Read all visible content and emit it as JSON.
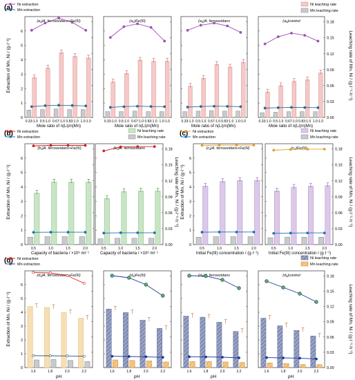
{
  "figure": {
    "panel_labels": [
      "(a)",
      "(b)",
      "(c)",
      "(d)"
    ],
    "left_axis_label": "Extraction of Mn, Ni / (g·l⁻¹)",
    "right_axis_label": "Leaching rate of Mn, Ni / (g·l⁻¹·h⁻¹)",
    "legend_line": [
      "Ni extraction",
      "Mn extraction"
    ],
    "legend_bar": [
      "Ni leaching rate",
      "Mn leaching rate"
    ],
    "xlabel_a": "Mole ratio of n(Li)/n(Mn)",
    "xlabel_b": "Capacity of bacteria / ×10⁸ ml⁻¹",
    "xlabel_c": "Initial Fe(III) concentration / (g·l⁻¹)",
    "xlabel_d": "pH"
  },
  "chart_data": [
    {
      "type": "bar",
      "panel": "(a1)",
      "title": "(a₁)A. ferrooxidans+Fe(III)",
      "categories": [
        "0.33:1.0",
        "0.5:1.0",
        "0.67:1.0",
        "0.83:1.0",
        "1.0:1.0"
      ],
      "ylim": [
        0,
        7
      ],
      "y2lim": [
        0,
        0.19
      ],
      "yticks": [
        0,
        1,
        2,
        3,
        4,
        5,
        6
      ],
      "y2ticks": [
        0.0,
        0.03,
        0.06,
        0.09,
        0.12,
        0.15,
        0.18
      ],
      "series": [
        {
          "name": "Ni leaching rate",
          "axis": "right",
          "kind": "bar",
          "values": [
            0.075,
            0.093,
            0.122,
            0.115,
            0.112
          ]
        },
        {
          "name": "Mn leaching rate",
          "axis": "right",
          "kind": "bar",
          "values": [
            0.014,
            0.015,
            0.016,
            0.015,
            0.015
          ]
        },
        {
          "name": "Ni extraction",
          "axis": "left",
          "kind": "line",
          "values": [
            6.05,
            6.55,
            6.9,
            6.6,
            6.05
          ]
        },
        {
          "name": "Mn extraction",
          "axis": "left",
          "kind": "line",
          "values": [
            0.75,
            0.82,
            0.85,
            0.83,
            0.8
          ]
        }
      ]
    },
    {
      "type": "bar",
      "panel": "(a2)",
      "title": "(a₂)Fe(III)",
      "categories": [
        "0.33:1.0",
        "0.5:1.0",
        "0.67:1.0",
        "0.83:1.0",
        "1.0:1.0"
      ],
      "ylim": [
        0,
        7
      ],
      "y2lim": [
        0,
        0.19
      ],
      "series": [
        {
          "name": "Ni leaching rate",
          "axis": "right",
          "kind": "bar",
          "values": [
            0.067,
            0.083,
            0.108,
            0.106,
            0.106
          ]
        },
        {
          "name": "Mn leaching rate",
          "axis": "right",
          "kind": "bar",
          "values": [
            0.011,
            0.011,
            0.012,
            0.011,
            0.011
          ]
        },
        {
          "name": "Ni extraction",
          "axis": "left",
          "kind": "line",
          "values": [
            5.55,
            6.3,
            6.5,
            6.25,
            5.3
          ]
        },
        {
          "name": "Mn extraction",
          "axis": "left",
          "kind": "line",
          "values": [
            0.7,
            0.75,
            0.78,
            0.76,
            0.75
          ]
        }
      ]
    },
    {
      "type": "bar",
      "panel": "(a3)",
      "title": "(a₃)A. ferrooxidans",
      "categories": [
        "0.33:1.0",
        "0.5:1.0",
        "0.67:1.0",
        "0.83:1.0",
        "1.0:1.0"
      ],
      "ylim": [
        0,
        7
      ],
      "y2lim": [
        0,
        0.19
      ],
      "series": [
        {
          "name": "Ni leaching rate",
          "axis": "right",
          "kind": "bar",
          "values": [
            0.059,
            0.074,
            0.1,
            0.095,
            0.104
          ]
        },
        {
          "name": "Mn leaching rate",
          "axis": "right",
          "kind": "bar",
          "values": [
            0.011,
            0.012,
            0.013,
            0.012,
            0.012
          ]
        },
        {
          "name": "Ni extraction",
          "axis": "left",
          "kind": "line",
          "values": [
            6.05,
            6.4,
            6.55,
            6.35,
            5.9
          ]
        },
        {
          "name": "Mn extraction",
          "axis": "left",
          "kind": "line",
          "values": [
            0.72,
            0.76,
            0.78,
            0.77,
            0.75
          ]
        }
      ]
    },
    {
      "type": "bar",
      "panel": "(a4)",
      "title": "(a₄)control",
      "categories": [
        "0.33:1.0",
        "0.5:1.0",
        "0.67:1.0",
        "0.83:1.0",
        "1.0:1.0"
      ],
      "ylim": [
        0,
        7
      ],
      "y2lim": [
        0,
        0.19
      ],
      "series": [
        {
          "name": "Ni leaching rate",
          "axis": "right",
          "kind": "bar",
          "values": [
            0.048,
            0.06,
            0.068,
            0.071,
            0.084
          ]
        },
        {
          "name": "Mn leaching rate",
          "axis": "right",
          "kind": "bar",
          "values": [
            0.009,
            0.01,
            0.011,
            0.011,
            0.011
          ]
        },
        {
          "name": "Ni extraction",
          "axis": "left",
          "kind": "line",
          "values": [
            5.1,
            5.6,
            5.85,
            5.7,
            5.3
          ]
        },
        {
          "name": "Mn extraction",
          "axis": "left",
          "kind": "line",
          "values": [
            0.65,
            0.68,
            0.7,
            0.69,
            0.68
          ]
        }
      ]
    },
    {
      "type": "bar",
      "panel": "(b1)",
      "title": "(b₁)A. ferrooxidans+Fe(III)",
      "categories": [
        "0.5",
        "1.0",
        "1.5",
        "2.0"
      ],
      "ylim": [
        0,
        7
      ],
      "y2lim": [
        0,
        0.19
      ],
      "yticks": [
        0,
        1,
        2,
        3,
        4,
        5,
        6
      ],
      "y2ticks": [
        0.0,
        0.03,
        0.06,
        0.09,
        0.12,
        0.15,
        0.18
      ],
      "series": [
        {
          "name": "Ni leaching rate",
          "axis": "right",
          "kind": "bar",
          "values": [
            0.097,
            0.118,
            0.118,
            0.118
          ]
        },
        {
          "name": "Mn leaching rate",
          "axis": "right",
          "kind": "bar",
          "values": [
            0.014,
            0.015,
            0.015,
            0.015
          ]
        },
        {
          "name": "Ni extraction",
          "axis": "left",
          "kind": "line",
          "values": [
            6.85,
            6.88,
            6.88,
            6.88
          ]
        },
        {
          "name": "Mn extraction",
          "axis": "left",
          "kind": "line",
          "values": [
            0.85,
            0.86,
            0.86,
            0.86
          ]
        }
      ]
    },
    {
      "type": "bar",
      "panel": "(b2)",
      "title": "(b₂)A. ferrooxidans",
      "categories": [
        "0.5",
        "1.0",
        "1.5",
        "2.0"
      ],
      "ylim": [
        0,
        7
      ],
      "y2lim": [
        0,
        0.19
      ],
      "series": [
        {
          "name": "Ni leaching rate",
          "axis": "right",
          "kind": "bar",
          "values": [
            0.087,
            0.1,
            0.101,
            0.101
          ]
        },
        {
          "name": "Mn leaching rate",
          "axis": "right",
          "kind": "bar",
          "values": [
            0.011,
            0.012,
            0.012,
            0.012
          ]
        },
        {
          "name": "Ni extraction",
          "axis": "left",
          "kind": "line",
          "values": [
            6.5,
            6.78,
            6.8,
            6.8
          ]
        },
        {
          "name": "Mn extraction",
          "axis": "left",
          "kind": "line",
          "values": [
            0.8,
            0.82,
            0.82,
            0.82
          ]
        }
      ]
    },
    {
      "type": "bar",
      "panel": "(c1)",
      "title": "(c₁)A. ferrooxidans+Fe(III)",
      "categories": [
        "0.5",
        "1.0",
        "1.5",
        "2.0"
      ],
      "ylim": [
        0,
        7
      ],
      "y2lim": [
        0,
        0.19
      ],
      "yticks": [
        0,
        1,
        2,
        3,
        4,
        5,
        6
      ],
      "y2ticks": [
        0.0,
        0.03,
        0.06,
        0.09,
        0.12,
        0.15,
        0.18
      ],
      "series": [
        {
          "name": "Ni leaching rate",
          "axis": "right",
          "kind": "bar",
          "values": [
            0.11,
            0.119,
            0.121,
            0.121
          ]
        },
        {
          "name": "Mn leaching rate",
          "axis": "right",
          "kind": "bar",
          "values": [
            0.014,
            0.015,
            0.015,
            0.015
          ]
        },
        {
          "name": "Ni extraction",
          "axis": "left",
          "kind": "line",
          "values": [
            6.88,
            6.9,
            6.9,
            6.9
          ]
        },
        {
          "name": "Mn extraction",
          "axis": "left",
          "kind": "line",
          "values": [
            0.86,
            0.87,
            0.87,
            0.87
          ]
        }
      ]
    },
    {
      "type": "bar",
      "panel": "(c2)",
      "title": "(c₂)Fe(III)",
      "categories": [
        "0.5",
        "1.0",
        "1.5",
        "2.0"
      ],
      "ylim": [
        0,
        7
      ],
      "y2lim": [
        0,
        0.19
      ],
      "series": [
        {
          "name": "Ni leaching rate",
          "axis": "right",
          "kind": "bar",
          "values": [
            0.101,
            0.108,
            0.11,
            0.111
          ]
        },
        {
          "name": "Mn leaching rate",
          "axis": "right",
          "kind": "bar",
          "values": [
            0.013,
            0.014,
            0.014,
            0.014
          ]
        },
        {
          "name": "Ni extraction",
          "axis": "left",
          "kind": "line",
          "values": [
            6.55,
            6.6,
            6.62,
            6.62
          ]
        },
        {
          "name": "Mn extraction",
          "axis": "left",
          "kind": "line",
          "values": [
            0.78,
            0.8,
            0.81,
            0.81
          ]
        }
      ]
    },
    {
      "type": "bar",
      "panel": "(d1)",
      "title": "(d₁)A. ferrooxidans+Fe(III)",
      "categories": [
        "1.6",
        "1.8",
        "2.0",
        "2.2"
      ],
      "ylim": [
        0,
        7
      ],
      "y2lim": [
        0,
        0.19
      ],
      "yticks": [
        0,
        1,
        2,
        3,
        4,
        5,
        6
      ],
      "y2ticks": [
        0.0,
        0.03,
        0.06,
        0.09,
        0.12,
        0.15,
        0.18
      ],
      "series": [
        {
          "name": "Ni leaching rate",
          "axis": "right",
          "kind": "bar",
          "values": [
            0.015,
            0.016,
            0.014,
            0.012
          ]
        },
        {
          "name": "Mn leaching rate",
          "axis": "right",
          "kind": "bar",
          "values": [
            0.12,
            0.118,
            0.108,
            0.097
          ]
        },
        {
          "name": "Ni extraction",
          "axis": "left",
          "kind": "line",
          "values": [
            6.88,
            6.85,
            6.65,
            6.1
          ]
        },
        {
          "name": "Mn extraction",
          "axis": "left",
          "kind": "line",
          "values": [
            0.86,
            0.85,
            0.84,
            0.82
          ]
        }
      ]
    },
    {
      "type": "bar",
      "panel": "(d2)",
      "title": "(d₂)Fe(III)",
      "categories": [
        "1.6",
        "1.8",
        "2.0",
        "2.2"
      ],
      "ylim": [
        0,
        7
      ],
      "y2lim": [
        0,
        0.19
      ],
      "series": [
        {
          "name": "Ni leaching rate",
          "axis": "right",
          "kind": "bar",
          "values": [
            0.015,
            0.014,
            0.013,
            0.011
          ]
        },
        {
          "name": "Mn leaching rate",
          "axis": "right",
          "kind": "bar",
          "values": [
            0.115,
            0.108,
            0.093,
            0.077
          ]
        },
        {
          "name": "Ni extraction",
          "axis": "left",
          "kind": "line",
          "values": [
            6.65,
            6.5,
            6.0,
            5.2
          ]
        },
        {
          "name": "Mn extraction",
          "axis": "left",
          "kind": "line",
          "values": [
            0.82,
            0.8,
            0.78,
            0.74
          ]
        }
      ]
    },
    {
      "type": "bar",
      "panel": "(d3)",
      "title": "(d₃)A. ferrooxidans",
      "categories": [
        "1.6",
        "1.8",
        "2.0",
        "2.2"
      ],
      "ylim": [
        0,
        7
      ],
      "y2lim": [
        0,
        0.19
      ],
      "series": [
        {
          "name": "Ni leaching rate",
          "axis": "right",
          "kind": "bar",
          "values": [
            0.012,
            0.012,
            0.011,
            0.01
          ]
        },
        {
          "name": "Mn leaching rate",
          "axis": "right",
          "kind": "bar",
          "values": [
            0.101,
            0.099,
            0.089,
            0.071
          ]
        },
        {
          "name": "Ni extraction",
          "axis": "left",
          "kind": "line",
          "values": [
            6.65,
            6.62,
            6.35,
            5.75
          ]
        },
        {
          "name": "Mn extraction",
          "axis": "left",
          "kind": "line",
          "values": [
            0.78,
            0.77,
            0.75,
            0.7
          ]
        }
      ]
    },
    {
      "type": "bar",
      "panel": "(d4)",
      "title": "(d₄)control",
      "categories": [
        "1.6",
        "1.8",
        "2.0",
        "2.2"
      ],
      "ylim": [
        0,
        7
      ],
      "y2lim": [
        0,
        0.19
      ],
      "series": [
        {
          "name": "Ni leaching rate",
          "axis": "right",
          "kind": "bar",
          "values": [
            0.009,
            0.008,
            0.006,
            0.006
          ]
        },
        {
          "name": "Mn leaching rate",
          "axis": "right",
          "kind": "bar",
          "values": [
            0.097,
            0.082,
            0.073,
            0.062
          ]
        },
        {
          "name": "Ni extraction",
          "axis": "left",
          "kind": "line",
          "values": [
            6.25,
            5.8,
            5.35,
            4.75
          ]
        },
        {
          "name": "Mn extraction",
          "axis": "left",
          "kind": "line",
          "values": [
            0.72,
            0.7,
            0.68,
            0.62
          ]
        }
      ]
    }
  ]
}
